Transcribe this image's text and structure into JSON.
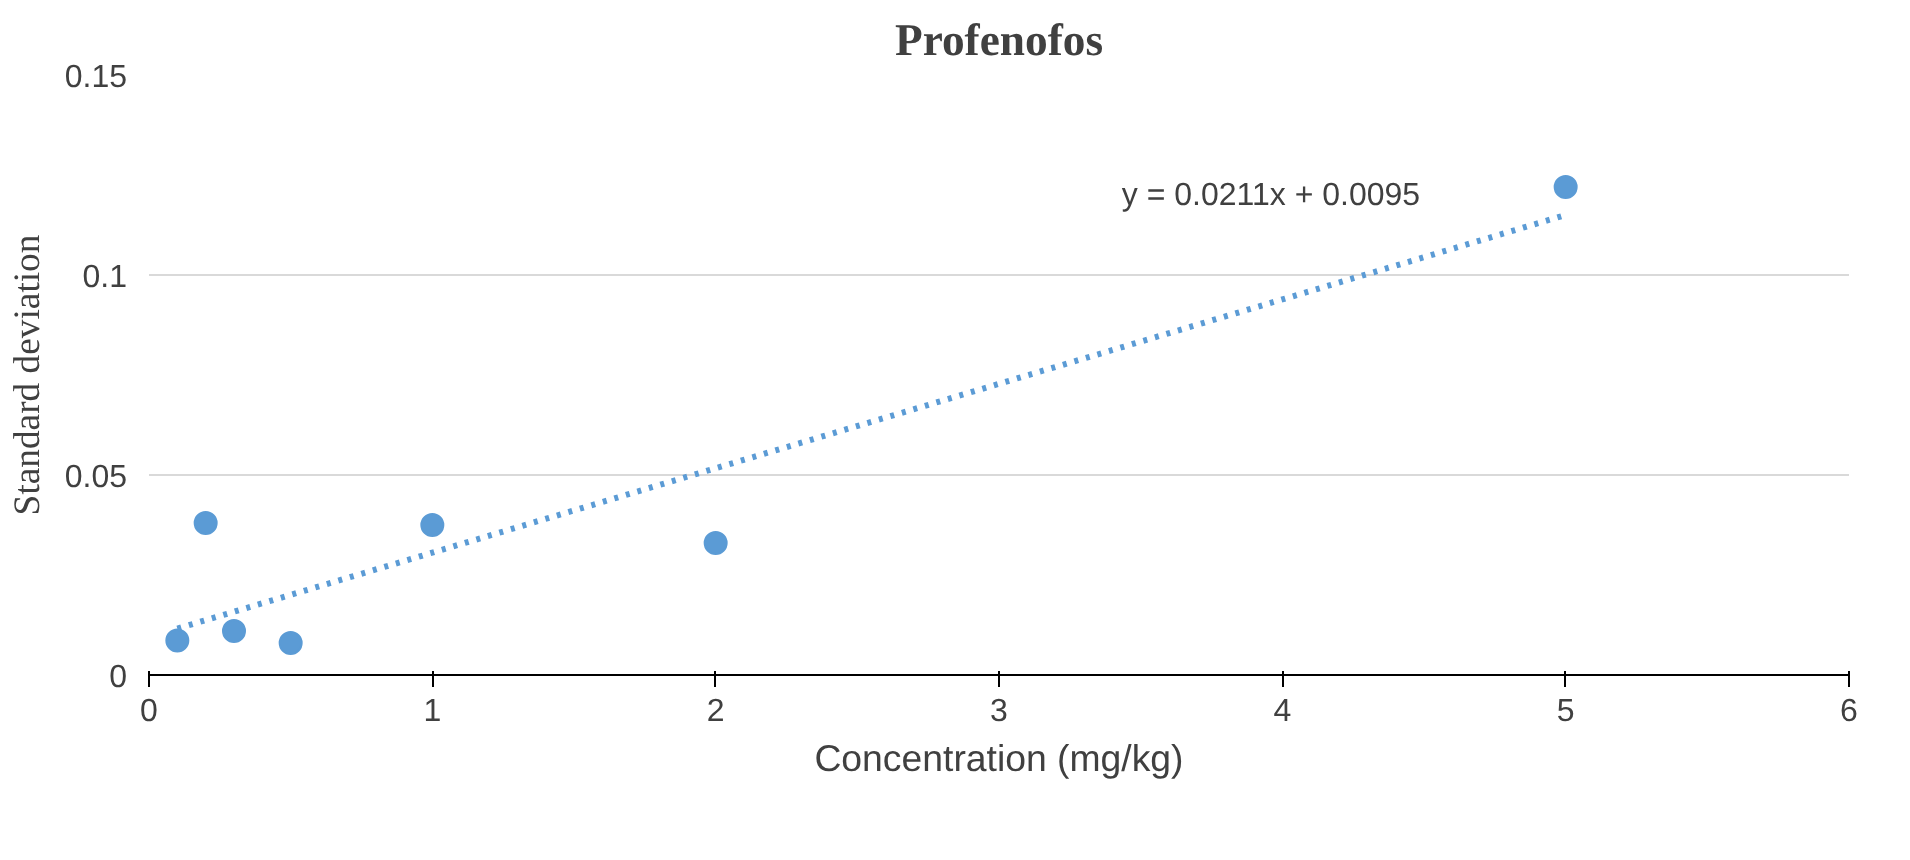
{
  "chart_data": {
    "type": "scatter",
    "title": "Profenofos",
    "xlabel": "Concentration (mg/kg)",
    "ylabel": "Standard deviation",
    "xlim": [
      0,
      6
    ],
    "xticks": [
      0,
      1,
      2,
      3,
      4,
      5,
      6
    ],
    "ylim": [
      0,
      0.15
    ],
    "yticks": [
      0,
      0.05,
      0.1,
      0.15
    ],
    "grid": "y",
    "series": [
      {
        "marker": "circle",
        "color": "#5b9bd5",
        "x": [
          0.1,
          0.2,
          0.3,
          0.5,
          1,
          2,
          5
        ],
        "values": [
          0.0086,
          0.038,
          0.011,
          0.008,
          0.0375,
          0.033,
          0.122
        ]
      },
      {
        "type": "line",
        "color": "#5b9bd5",
        "line_style": "dotted",
        "x": [
          0.1,
          5
        ],
        "values": [
          0.0116,
          0.115
        ]
      }
    ],
    "annotations": [
      "y = 0.0211x + 0.0095"
    ]
  }
}
